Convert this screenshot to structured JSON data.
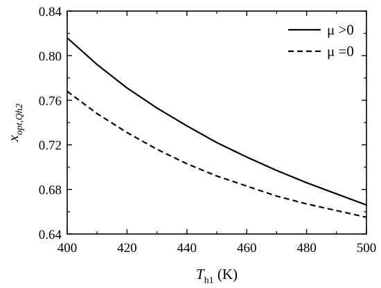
{
  "chart_data": {
    "type": "line",
    "title": "",
    "xlabel": {
      "main": "T",
      "sub": "h1",
      "unit": " (K)"
    },
    "ylabel": {
      "main": "x",
      "sub": "opt,Qh2"
    },
    "xlim": [
      400,
      500
    ],
    "ylim": [
      0.64,
      0.84
    ],
    "xticks": [
      400,
      420,
      440,
      460,
      480,
      500
    ],
    "yticks": [
      0.64,
      0.68,
      0.72,
      0.76,
      0.8,
      0.84
    ],
    "ytick_labels": [
      "0.64",
      "0.68",
      "0.72",
      "0.76",
      "0.80",
      "0.84"
    ],
    "grid": false,
    "legend_position": "top-right",
    "series": [
      {
        "name": "μ >0",
        "style": "solid",
        "x": [
          400,
          410,
          420,
          430,
          440,
          450,
          460,
          470,
          480,
          490,
          500
        ],
        "y": [
          0.816,
          0.792,
          0.771,
          0.753,
          0.737,
          0.722,
          0.709,
          0.697,
          0.686,
          0.676,
          0.666
        ]
      },
      {
        "name": "μ =0",
        "style": "dashed",
        "x": [
          400,
          410,
          420,
          430,
          440,
          450,
          460,
          470,
          480,
          490,
          500
        ],
        "y": [
          0.768,
          0.748,
          0.731,
          0.716,
          0.703,
          0.692,
          0.683,
          0.674,
          0.667,
          0.661,
          0.655
        ]
      }
    ]
  }
}
